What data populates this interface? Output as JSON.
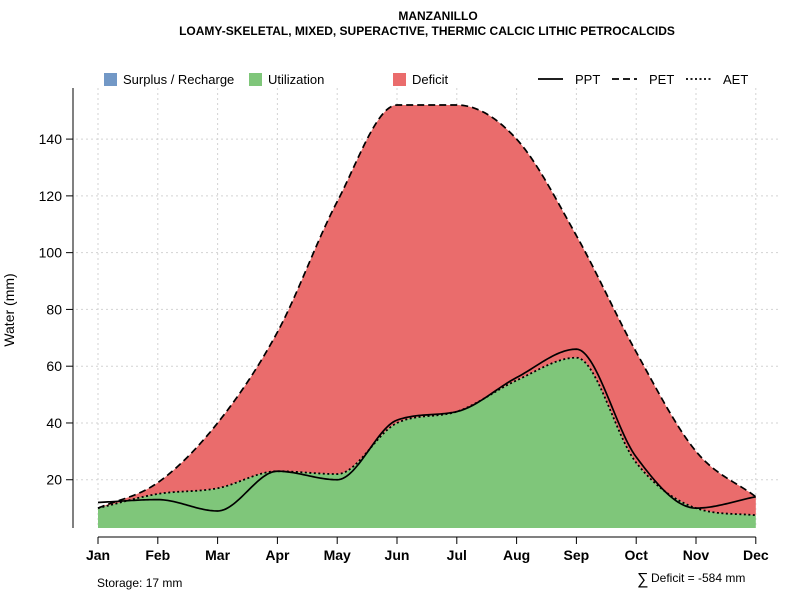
{
  "chart_data": {
    "type": "area",
    "title": "MANZANILLO",
    "subtitle": "LOAMY-SKELETAL, MIXED, SUPERACTIVE, THERMIC CALCIC LITHIC PETROCALCIDS",
    "xlabel": "",
    "ylabel": "Water (mm)",
    "ylim": [
      3,
      158
    ],
    "yticks": [
      20,
      40,
      60,
      80,
      100,
      120,
      140
    ],
    "ytick_labels": [
      "20",
      "40",
      "60",
      "80",
      "100",
      "120",
      "140"
    ],
    "categories": [
      "Jan",
      "Feb",
      "Mar",
      "Apr",
      "May",
      "Jun",
      "Jul",
      "Aug",
      "Sep",
      "Oct",
      "Nov",
      "Dec"
    ],
    "series": [
      {
        "name": "PPT",
        "values": [
          12,
          13,
          9,
          23,
          20,
          41,
          44,
          56,
          66,
          28,
          10,
          14
        ]
      },
      {
        "name": "PET",
        "values": [
          10,
          19,
          40,
          72,
          118,
          152,
          152,
          140,
          106,
          65,
          30,
          14
        ]
      },
      {
        "name": "AET",
        "values": [
          10,
          15,
          17,
          23,
          22,
          40,
          44,
          55,
          63,
          26,
          10,
          7.5
        ]
      }
    ],
    "legend": [
      {
        "label": "Surplus / Recharge",
        "color": "#7298c6",
        "kind": "box"
      },
      {
        "label": "Utilization",
        "color": "#7fc67a",
        "kind": "box"
      },
      {
        "label": "Deficit",
        "color": "#ea6c6c",
        "kind": "box"
      },
      {
        "label": "PPT",
        "kind": "solid"
      },
      {
        "label": "PET",
        "kind": "dashed"
      },
      {
        "label": "AET",
        "kind": "dotted"
      }
    ],
    "legend_position": "top",
    "grid": true,
    "colors": {
      "deficit": "#ea6c6c",
      "utilization": "#7fc67a",
      "surplus": "#7298c6",
      "grid": "#d3d3d3",
      "line": "#000000"
    },
    "annotations": {
      "storage": "Storage: 17 mm",
      "deficit_symbol": "∑",
      "deficit": "Deficit = -584 mm"
    }
  }
}
